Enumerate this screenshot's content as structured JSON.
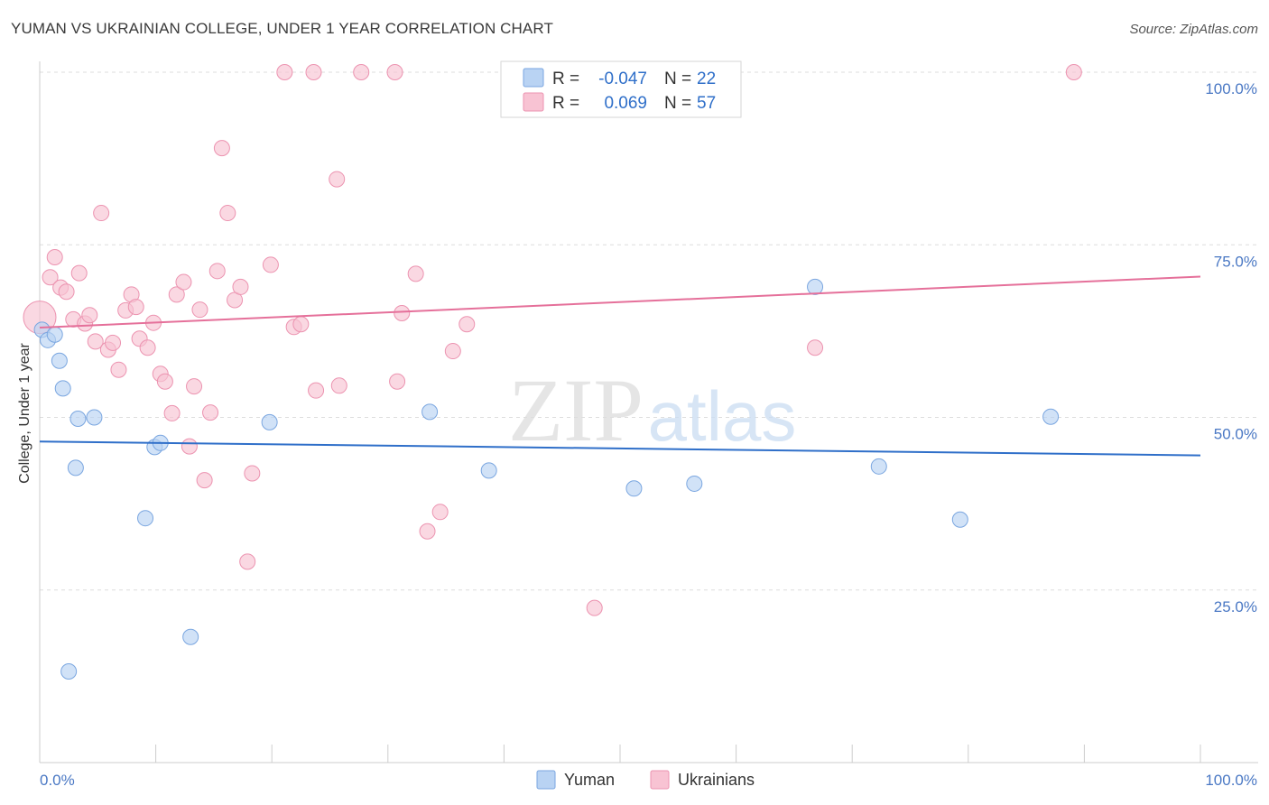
{
  "title": "YUMAN VS UKRAINIAN COLLEGE, UNDER 1 YEAR CORRELATION CHART",
  "source": "Source: ZipAtlas.com",
  "watermark": {
    "zip": "ZIP",
    "atlas": "atlas"
  },
  "colors": {
    "yuman_fill": "#b9d3f3",
    "yuman_stroke": "#7aa6e0",
    "yuman_line": "#2f6fc9",
    "ukr_fill": "#f8c3d3",
    "ukr_stroke": "#ec93b0",
    "ukr_line": "#e5709a",
    "tick_text": "#4a78c4",
    "grid": "#dddddd"
  },
  "stats_legend": {
    "r_label": "R =",
    "n_label": "N =",
    "rows": [
      {
        "series": "Yuman",
        "r": "-0.047",
        "n": "22"
      },
      {
        "series": "Ukrainians",
        "r": "0.069",
        "n": "57"
      }
    ]
  },
  "chart_data": {
    "type": "scatter",
    "title": "YUMAN VS UKRAINIAN COLLEGE, UNDER 1 YEAR CORRELATION CHART",
    "xlabel": "",
    "ylabel": "College, Under 1 year",
    "xlim": [
      0,
      100
    ],
    "ylim": [
      0,
      102
    ],
    "x_tick_labels": {
      "left": "0.0%",
      "right": "100.0%"
    },
    "y_ticks": [
      {
        "value": 100,
        "label": "100.0%"
      },
      {
        "value": 75,
        "label": "75.0%"
      },
      {
        "value": 50,
        "label": "50.0%"
      },
      {
        "value": 25,
        "label": "25.0%"
      }
    ],
    "grid": true,
    "legend_position": "bottom-center",
    "series": [
      {
        "name": "Yuman",
        "trend": {
          "start": [
            0,
            46.5
          ],
          "end": [
            100,
            44.5
          ]
        },
        "points": [
          {
            "x": 0.2,
            "y": 62.7
          },
          {
            "x": 0.7,
            "y": 61.2
          },
          {
            "x": 1.3,
            "y": 62.0
          },
          {
            "x": 1.7,
            "y": 58.2
          },
          {
            "x": 2.0,
            "y": 54.2
          },
          {
            "x": 2.5,
            "y": 13.2
          },
          {
            "x": 3.1,
            "y": 42.7
          },
          {
            "x": 3.3,
            "y": 49.8
          },
          {
            "x": 4.7,
            "y": 50.0
          },
          {
            "x": 9.1,
            "y": 35.4
          },
          {
            "x": 9.9,
            "y": 45.7
          },
          {
            "x": 10.4,
            "y": 46.3
          },
          {
            "x": 13.0,
            "y": 18.2
          },
          {
            "x": 19.8,
            "y": 49.3
          },
          {
            "x": 33.6,
            "y": 50.8
          },
          {
            "x": 38.7,
            "y": 42.3
          },
          {
            "x": 51.2,
            "y": 39.7
          },
          {
            "x": 56.4,
            "y": 40.4
          },
          {
            "x": 66.8,
            "y": 68.9
          },
          {
            "x": 72.3,
            "y": 42.9
          },
          {
            "x": 79.3,
            "y": 35.2
          },
          {
            "x": 87.1,
            "y": 50.1
          }
        ]
      },
      {
        "name": "Ukrainians",
        "trend": {
          "start": [
            0,
            63.0
          ],
          "end": [
            100,
            70.4
          ]
        },
        "points": [
          {
            "x": 0.0,
            "y": 64.5,
            "big": true
          },
          {
            "x": 0.9,
            "y": 70.3
          },
          {
            "x": 1.3,
            "y": 73.2
          },
          {
            "x": 1.8,
            "y": 68.8
          },
          {
            "x": 2.3,
            "y": 68.2
          },
          {
            "x": 2.9,
            "y": 64.2
          },
          {
            "x": 3.4,
            "y": 70.9
          },
          {
            "x": 3.9,
            "y": 63.6
          },
          {
            "x": 4.3,
            "y": 64.8
          },
          {
            "x": 4.8,
            "y": 61.0
          },
          {
            "x": 5.3,
            "y": 79.6
          },
          {
            "x": 5.9,
            "y": 59.8
          },
          {
            "x": 6.3,
            "y": 60.8
          },
          {
            "x": 6.8,
            "y": 56.9
          },
          {
            "x": 7.4,
            "y": 65.5
          },
          {
            "x": 7.9,
            "y": 67.8
          },
          {
            "x": 8.3,
            "y": 66.0
          },
          {
            "x": 8.6,
            "y": 61.4
          },
          {
            "x": 9.3,
            "y": 60.1
          },
          {
            "x": 9.8,
            "y": 63.7
          },
          {
            "x": 10.4,
            "y": 56.3
          },
          {
            "x": 10.8,
            "y": 55.2
          },
          {
            "x": 11.4,
            "y": 50.6
          },
          {
            "x": 11.8,
            "y": 67.8
          },
          {
            "x": 12.4,
            "y": 69.6
          },
          {
            "x": 12.9,
            "y": 45.8
          },
          {
            "x": 13.3,
            "y": 54.5
          },
          {
            "x": 13.8,
            "y": 65.6
          },
          {
            "x": 14.2,
            "y": 40.9
          },
          {
            "x": 14.7,
            "y": 50.7
          },
          {
            "x": 15.3,
            "y": 71.2
          },
          {
            "x": 15.7,
            "y": 89.0
          },
          {
            "x": 16.2,
            "y": 79.6
          },
          {
            "x": 16.8,
            "y": 67.0
          },
          {
            "x": 17.3,
            "y": 68.9
          },
          {
            "x": 17.9,
            "y": 29.1
          },
          {
            "x": 18.3,
            "y": 41.9
          },
          {
            "x": 19.9,
            "y": 72.1
          },
          {
            "x": 21.1,
            "y": 100.0
          },
          {
            "x": 21.9,
            "y": 63.1
          },
          {
            "x": 22.5,
            "y": 63.5
          },
          {
            "x": 23.6,
            "y": 100.0
          },
          {
            "x": 23.8,
            "y": 53.9
          },
          {
            "x": 25.6,
            "y": 84.5
          },
          {
            "x": 25.8,
            "y": 54.6
          },
          {
            "x": 27.7,
            "y": 100.0
          },
          {
            "x": 30.6,
            "y": 100.0
          },
          {
            "x": 30.8,
            "y": 55.2
          },
          {
            "x": 31.2,
            "y": 65.1
          },
          {
            "x": 32.4,
            "y": 70.8
          },
          {
            "x": 33.4,
            "y": 33.5
          },
          {
            "x": 34.5,
            "y": 36.3
          },
          {
            "x": 35.6,
            "y": 59.6
          },
          {
            "x": 36.8,
            "y": 63.5
          },
          {
            "x": 47.8,
            "y": 22.4
          },
          {
            "x": 66.8,
            "y": 60.1
          },
          {
            "x": 89.1,
            "y": 100.0
          }
        ]
      }
    ]
  },
  "bottom_legend": [
    {
      "series": "Yuman",
      "label": "Yuman"
    },
    {
      "series": "Ukrainians",
      "label": "Ukrainians"
    }
  ]
}
